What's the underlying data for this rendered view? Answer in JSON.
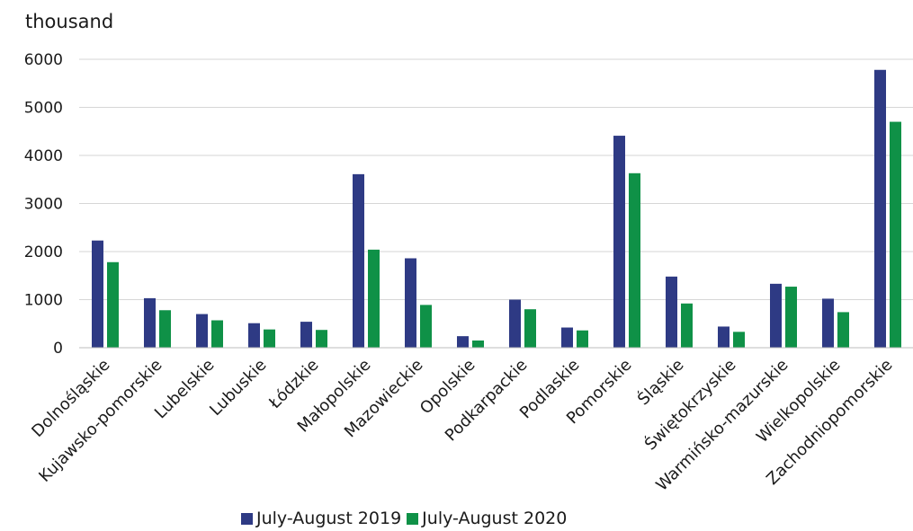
{
  "chart_data": {
    "type": "bar",
    "unit_label": "thousand",
    "categories": [
      "Dolnośląskie",
      "Kujawsko-pomorskie",
      "Lubelskie",
      "Lubuskie",
      "Łódzkie",
      "Małopolskie",
      "Mazowieckie",
      "Opolskie",
      "Podkarpackie",
      "Podlaskie",
      "Pomorskie",
      "Śląskie",
      "Świętokrzyskie",
      "Warmińsko-mazurskie",
      "Wielkopolskie",
      "Zachodniopomorskie"
    ],
    "series": [
      {
        "name": "July-August 2019",
        "color": "#2e3a84",
        "values": [
          2230,
          1030,
          700,
          510,
          540,
          3610,
          1860,
          240,
          1000,
          420,
          4410,
          1480,
          440,
          1330,
          1020,
          5780
        ]
      },
      {
        "name": "July-August 2020",
        "color": "#0f9147",
        "values": [
          1780,
          780,
          570,
          380,
          370,
          2040,
          890,
          150,
          800,
          360,
          3630,
          920,
          330,
          1270,
          740,
          4700
        ]
      }
    ],
    "y_ticks": [
      "0",
      "1000",
      "2000",
      "3000",
      "4000",
      "5000",
      "6000"
    ],
    "ylim": [
      0,
      6000
    ],
    "grid": true,
    "legend_position": "bottom"
  }
}
